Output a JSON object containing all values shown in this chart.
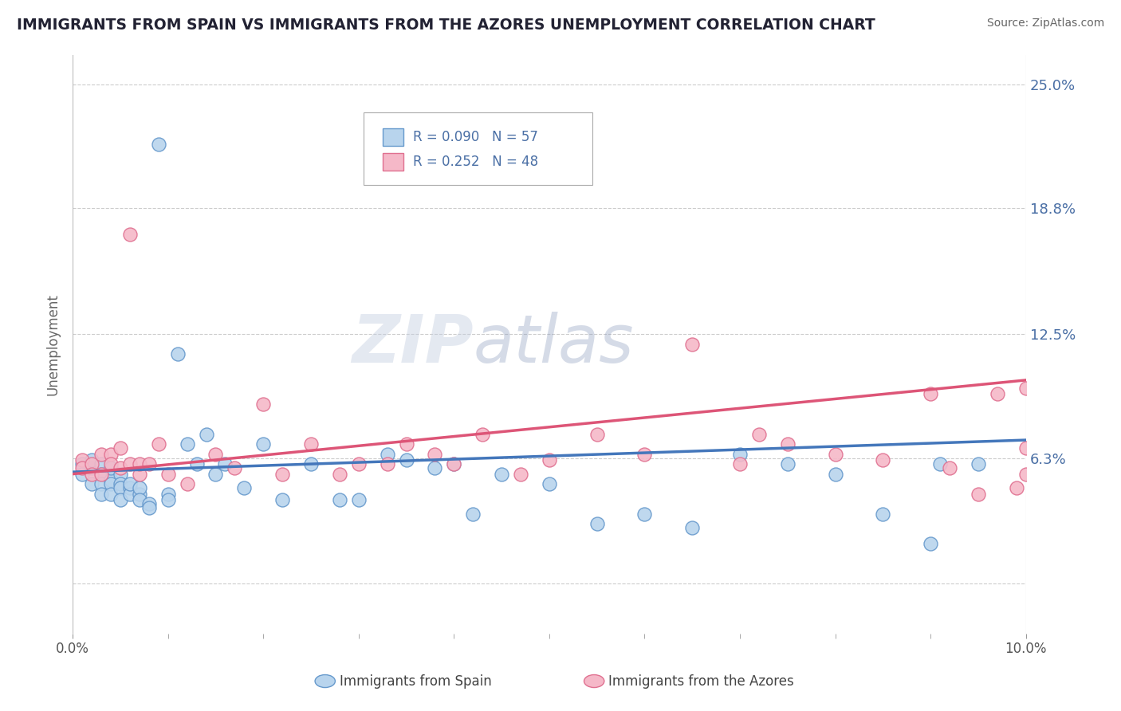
{
  "title": "IMMIGRANTS FROM SPAIN VS IMMIGRANTS FROM THE AZORES UNEMPLOYMENT CORRELATION CHART",
  "source": "Source: ZipAtlas.com",
  "ylabel": "Unemployment",
  "xlim": [
    0.0,
    0.1
  ],
  "ylim": [
    -0.025,
    0.265
  ],
  "ytick_vals": [
    0.063,
    0.125,
    0.188,
    0.25
  ],
  "ytick_labels": [
    "6.3%",
    "12.5%",
    "18.8%",
    "25.0%"
  ],
  "hgrid_vals": [
    0.0,
    0.063,
    0.125,
    0.188,
    0.25
  ],
  "legend_r1": "R = 0.090",
  "legend_n1": "N = 57",
  "legend_r2": "R = 0.252",
  "legend_n2": "N = 48",
  "color_spain_fill": "#b8d4ed",
  "color_spain_edge": "#6699cc",
  "color_azores_fill": "#f5b8c8",
  "color_azores_edge": "#e07090",
  "color_spain_line": "#4477bb",
  "color_azores_line": "#dd5577",
  "color_axis_right": "#4a6fa5",
  "color_title": "#222233",
  "background_color": "#ffffff",
  "spain_x": [
    0.001,
    0.001,
    0.002,
    0.002,
    0.002,
    0.003,
    0.003,
    0.003,
    0.003,
    0.004,
    0.004,
    0.004,
    0.004,
    0.005,
    0.005,
    0.005,
    0.005,
    0.006,
    0.006,
    0.006,
    0.007,
    0.007,
    0.007,
    0.008,
    0.008,
    0.009,
    0.01,
    0.01,
    0.011,
    0.012,
    0.013,
    0.014,
    0.015,
    0.016,
    0.018,
    0.02,
    0.022,
    0.025,
    0.028,
    0.03,
    0.033,
    0.035,
    0.038,
    0.04,
    0.042,
    0.045,
    0.05,
    0.055,
    0.06,
    0.065,
    0.07,
    0.075,
    0.08,
    0.085,
    0.09,
    0.091,
    0.095
  ],
  "spain_y": [
    0.06,
    0.055,
    0.058,
    0.062,
    0.05,
    0.06,
    0.055,
    0.05,
    0.045,
    0.052,
    0.058,
    0.05,
    0.045,
    0.055,
    0.05,
    0.048,
    0.042,
    0.048,
    0.045,
    0.05,
    0.045,
    0.048,
    0.042,
    0.04,
    0.038,
    0.22,
    0.045,
    0.042,
    0.115,
    0.07,
    0.06,
    0.075,
    0.055,
    0.06,
    0.048,
    0.07,
    0.042,
    0.06,
    0.042,
    0.042,
    0.065,
    0.062,
    0.058,
    0.06,
    0.035,
    0.055,
    0.05,
    0.03,
    0.035,
    0.028,
    0.065,
    0.06,
    0.055,
    0.035,
    0.02,
    0.06,
    0.06
  ],
  "azores_x": [
    0.001,
    0.001,
    0.002,
    0.002,
    0.003,
    0.003,
    0.004,
    0.004,
    0.005,
    0.005,
    0.006,
    0.006,
    0.007,
    0.007,
    0.008,
    0.009,
    0.01,
    0.012,
    0.015,
    0.017,
    0.02,
    0.022,
    0.025,
    0.028,
    0.03,
    0.033,
    0.035,
    0.038,
    0.04,
    0.043,
    0.047,
    0.05,
    0.055,
    0.06,
    0.065,
    0.07,
    0.072,
    0.075,
    0.08,
    0.085,
    0.09,
    0.092,
    0.095,
    0.097,
    0.099,
    0.1,
    0.1,
    0.1
  ],
  "azores_y": [
    0.062,
    0.058,
    0.06,
    0.055,
    0.065,
    0.055,
    0.065,
    0.06,
    0.058,
    0.068,
    0.175,
    0.06,
    0.055,
    0.06,
    0.06,
    0.07,
    0.055,
    0.05,
    0.065,
    0.058,
    0.09,
    0.055,
    0.07,
    0.055,
    0.06,
    0.06,
    0.07,
    0.065,
    0.06,
    0.075,
    0.055,
    0.062,
    0.075,
    0.065,
    0.12,
    0.06,
    0.075,
    0.07,
    0.065,
    0.062,
    0.095,
    0.058,
    0.045,
    0.095,
    0.048,
    0.068,
    0.055,
    0.098
  ]
}
